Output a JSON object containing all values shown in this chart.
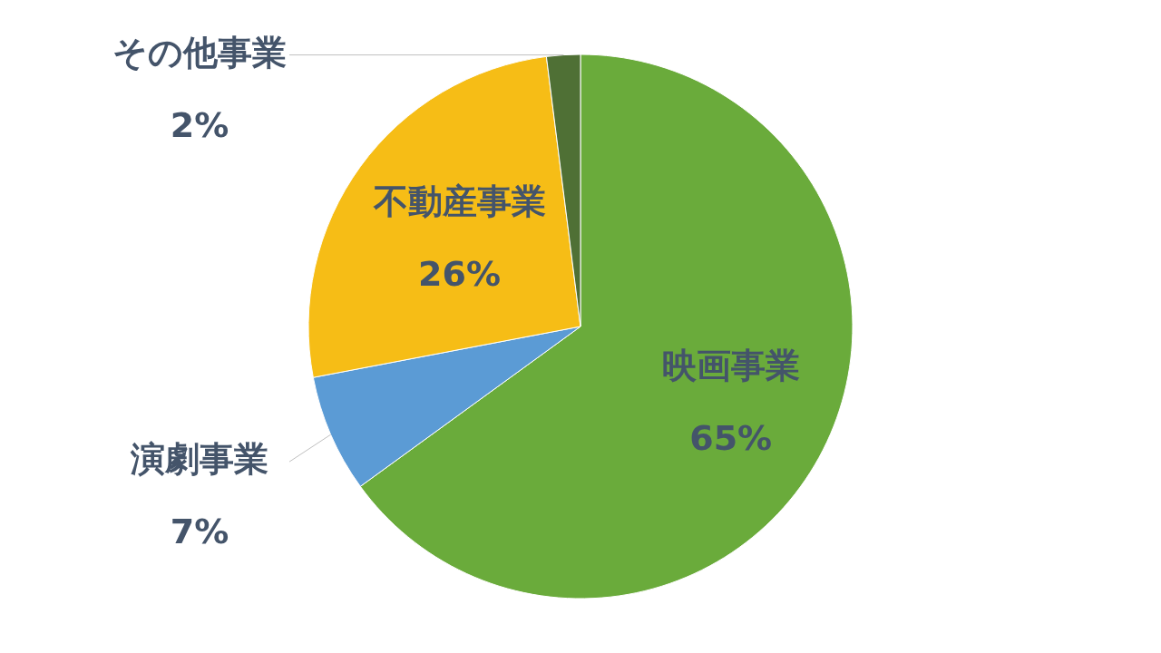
{
  "chart_data": {
    "type": "pie",
    "categories": [
      "映画事業",
      "演劇事業",
      "不動産事業",
      "その他事業"
    ],
    "values": [
      65,
      7,
      26,
      2
    ],
    "colors": [
      "#6aab3b",
      "#5b9bd5",
      "#f6bd16",
      "#4f7035"
    ],
    "value_labels": [
      "65%",
      "7%",
      "26%",
      "2%"
    ]
  }
}
